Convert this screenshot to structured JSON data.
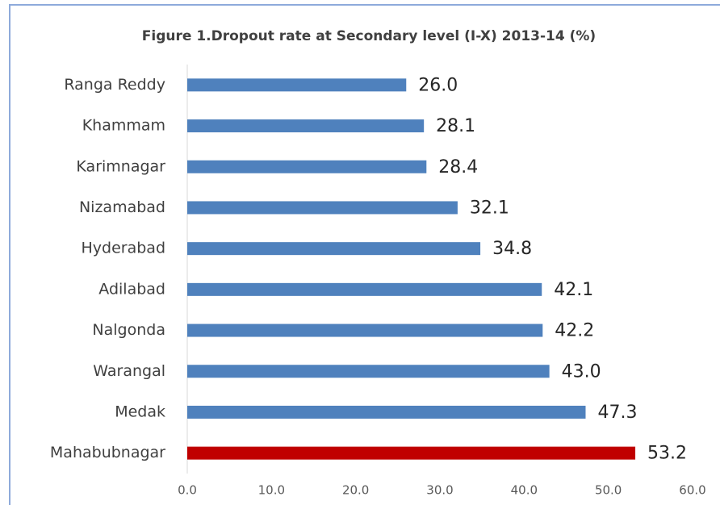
{
  "chart_data": {
    "type": "bar",
    "orientation": "horizontal",
    "title": "Figure 1.Dropout rate at Secondary level (I-X) 2013-14 (%)",
    "categories": [
      "Ranga Reddy",
      "Khammam",
      "Karimnagar",
      "Nizamabad",
      "Hyderabad",
      "Adilabad",
      "Nalgonda",
      "Warangal",
      "Medak",
      "Mahabubnagar"
    ],
    "values": [
      26.0,
      28.1,
      28.4,
      32.1,
      34.8,
      42.1,
      42.2,
      43.0,
      47.3,
      53.2
    ],
    "value_labels": [
      "26.0",
      "28.1",
      "28.4",
      "32.1",
      "34.8",
      "42.1",
      "42.2",
      "43.0",
      "47.3",
      "53.2"
    ],
    "colors": [
      "#4f81bd",
      "#4f81bd",
      "#4f81bd",
      "#4f81bd",
      "#4f81bd",
      "#4f81bd",
      "#4f81bd",
      "#4f81bd",
      "#4f81bd",
      "#c00000"
    ],
    "xlim": [
      0,
      60
    ],
    "xticks": [
      {
        "value": 0,
        "label": "0.0"
      },
      {
        "value": 10,
        "label": "10.0"
      },
      {
        "value": 20,
        "label": "20.0"
      },
      {
        "value": 30,
        "label": "30.0"
      },
      {
        "value": 40,
        "label": "40.0"
      },
      {
        "value": 50,
        "label": "50.0"
      },
      {
        "value": 60,
        "label": "60.0"
      }
    ],
    "grid": false
  }
}
